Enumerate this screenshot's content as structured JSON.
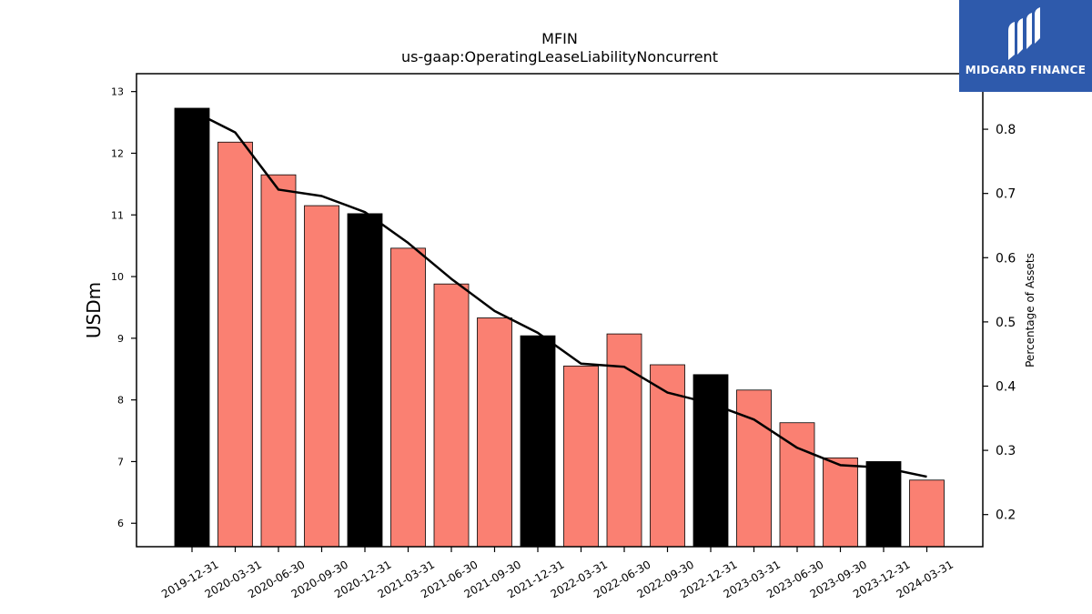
{
  "chart_data": {
    "type": "bar",
    "title": "MFIN",
    "subtitle": "us-gaap:OperatingLeaseLiabilityNoncurrent",
    "ylabel": "USDm",
    "y2label": "Percentage of Assets",
    "ylim": [
      5.62,
      13.29
    ],
    "y2lim": [
      0.15,
      0.8865
    ],
    "yticks": [
      6,
      7,
      8,
      9,
      10,
      11,
      12,
      13
    ],
    "y2ticks": [
      0.2,
      0.3,
      0.4,
      0.5,
      0.6,
      0.7,
      0.8
    ],
    "categories": [
      "2019-12-31",
      "2020-03-31",
      "2020-06-30",
      "2020-09-30",
      "2020-12-31",
      "2021-03-31",
      "2021-06-30",
      "2021-09-30",
      "2021-12-31",
      "2022-03-31",
      "2022-06-30",
      "2022-09-30",
      "2022-12-31",
      "2023-03-31",
      "2023-06-30",
      "2023-09-30",
      "2023-12-31",
      "2024-03-31"
    ],
    "series": [
      {
        "name": "",
        "type": "bar",
        "axis": "left",
        "values": [
          12.73,
          12.18,
          11.65,
          11.15,
          11.02,
          10.46,
          9.88,
          9.33,
          9.04,
          8.55,
          9.07,
          8.57,
          8.41,
          8.16,
          7.63,
          7.06,
          7.0,
          6.7
        ],
        "colors": [
          "#000000",
          "#fa8072",
          "#fa8072",
          "#fa8072",
          "#000000",
          "#fa8072",
          "#fa8072",
          "#fa8072",
          "#000000",
          "#fa8072",
          "#fa8072",
          "#fa8072",
          "#000000",
          "#fa8072",
          "#fa8072",
          "#fa8072",
          "#000000",
          "#fa8072"
        ]
      },
      {
        "name": "",
        "type": "line",
        "axis": "right",
        "color": "#000000",
        "values": [
          0.829,
          0.795,
          0.706,
          0.696,
          0.671,
          0.623,
          0.567,
          0.517,
          0.483,
          0.435,
          0.43,
          0.39,
          0.373,
          0.348,
          0.304,
          0.277,
          0.273,
          0.259
        ]
      }
    ],
    "legend": "none",
    "grid": false
  },
  "logo": {
    "text": "MIDGARD FINANCE",
    "background": "#2e5aac"
  }
}
